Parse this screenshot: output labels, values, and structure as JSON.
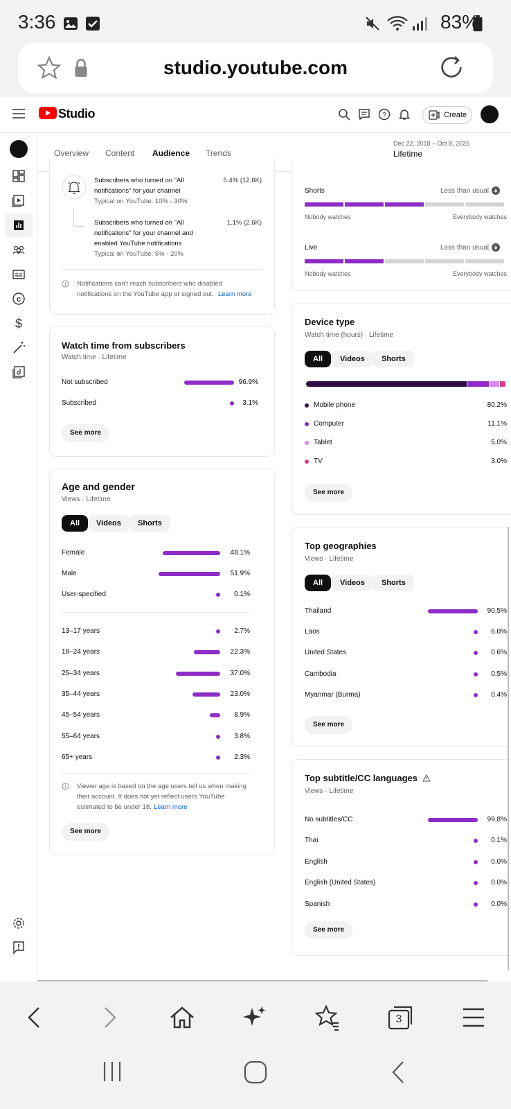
{
  "status": {
    "time": "3:36",
    "battery": "83%"
  },
  "browser": {
    "url": "studio.youtube.com",
    "tab_count": "3"
  },
  "header": {
    "logo_text": "Studio",
    "create_label": "Create"
  },
  "tabs": [
    "Overview",
    "Content",
    "Audience",
    "Trends"
  ],
  "date_range": {
    "range": "Dec 22, 2018 – Oct 8, 2025",
    "label": "Lifetime"
  },
  "notifications": {
    "row1": {
      "text1": "Subscribers who turned on \"All",
      "text2": "notifications\" for your channel",
      "typical": "Typical on YouTube: 10% - 30%",
      "value": "5.4% (12.6K)"
    },
    "row2": {
      "text1": "Subscribers who turned on \"All",
      "text2": "notifications\" for your channel and",
      "text3": "enabled YouTube notifications",
      "typical": "Typical on YouTube: 5% - 20%",
      "value": "1.1% (2.6K)"
    },
    "note1": "Notifications can't reach subscribers who disabled",
    "note2": "notifications on the YouTube app or signed out.",
    "learn_more": "Learn more"
  },
  "watch_time": {
    "title": "Watch time from subscribers",
    "subtitle": "Watch time · Lifetime",
    "rows": [
      {
        "label": "Not subscribed",
        "value": "96.9%",
        "fraction": 0.969
      },
      {
        "label": "Subscribed",
        "value": "3.1%",
        "fraction": 0.031
      }
    ],
    "see_more": "See more"
  },
  "age_gender": {
    "title": "Age and gender",
    "subtitle": "Views · Lifetime",
    "filters": [
      "All",
      "Videos",
      "Shorts"
    ],
    "gender": [
      {
        "label": "Female",
        "value": "48.1%",
        "fraction": 0.481
      },
      {
        "label": "Male",
        "value": "51.9%",
        "fraction": 0.519
      },
      {
        "label": "User-specified",
        "value": "0.1%",
        "fraction": 0.001
      }
    ],
    "age": [
      {
        "label": "13–17 years",
        "value": "2.7%",
        "fraction": 0.027
      },
      {
        "label": "18–24 years",
        "value": "22.3%",
        "fraction": 0.223
      },
      {
        "label": "25–34 years",
        "value": "37.0%",
        "fraction": 0.37
      },
      {
        "label": "35–44 years",
        "value": "23.0%",
        "fraction": 0.23
      },
      {
        "label": "45–54 years",
        "value": "8.9%",
        "fraction": 0.089
      },
      {
        "label": "55–64 years",
        "value": "3.8%",
        "fraction": 0.038
      },
      {
        "label": "65+ years",
        "value": "2.3%",
        "fraction": 0.023
      }
    ],
    "note1": "Viewer age is based on the age users tell us when making",
    "note2": "their account. It does not yet reflect users YouTube",
    "note3": "estimated to be under 18.",
    "learn_more": "Learn more",
    "see_more": "See more"
  },
  "formats": {
    "shorts": {
      "label": "Shorts",
      "status": "Less than usual",
      "left": "Nobody watches",
      "right": "Everybody watches",
      "level": 3
    },
    "live": {
      "label": "Live",
      "status": "Less than usual",
      "left": "Nobody watches",
      "right": "Everybody watches",
      "level": 2
    }
  },
  "device": {
    "title": "Device type",
    "subtitle": "Watch time (hours) · Lifetime",
    "filters": [
      "All",
      "Videos",
      "Shorts"
    ],
    "rows": [
      {
        "label": "Mobile phone",
        "value": "80.2%",
        "fraction": 0.802,
        "color": "#2b0f45"
      },
      {
        "label": "Computer",
        "value": "11.1%",
        "fraction": 0.111,
        "color": "#8e2cc8"
      },
      {
        "label": "Tablet",
        "value": "5.0%",
        "fraction": 0.05,
        "color": "#d58af0"
      },
      {
        "label": "TV",
        "value": "3.0%",
        "fraction": 0.03,
        "color": "#d63c8f"
      }
    ],
    "see_more": "See more"
  },
  "geographies": {
    "title": "Top geographies",
    "subtitle": "Views · Lifetime",
    "filters": [
      "All",
      "Videos",
      "Shorts"
    ],
    "rows": [
      {
        "label": "Thailand",
        "value": "90.5%",
        "fraction": 0.905
      },
      {
        "label": "Laos",
        "value": "6.0%",
        "fraction": 0.06
      },
      {
        "label": "United States",
        "value": "0.6%",
        "fraction": 0.006
      },
      {
        "label": "Cambodia",
        "value": "0.5%",
        "fraction": 0.005
      },
      {
        "label": "Myanmar (Burma)",
        "value": "0.4%",
        "fraction": 0.004
      }
    ],
    "see_more": "See more"
  },
  "subtitles": {
    "title": "Top subtitle/CC languages",
    "subtitle": "Views · Lifetime",
    "rows": [
      {
        "label": "No subtitles/CC",
        "value": "99.8%",
        "fraction": 0.998
      },
      {
        "label": "Thai",
        "value": "0.1%",
        "fraction": 0.001
      },
      {
        "label": "English",
        "value": "0.0%",
        "fraction": 0.0
      },
      {
        "label": "English (United States)",
        "value": "0.0%",
        "fraction": 0.0
      },
      {
        "label": "Spanish",
        "value": "0.0%",
        "fraction": 0.0
      }
    ],
    "see_more": "See more"
  },
  "colors": {
    "accent": "#8e2cc8",
    "brand_red": "#ff0000",
    "link": "#065fd4"
  }
}
